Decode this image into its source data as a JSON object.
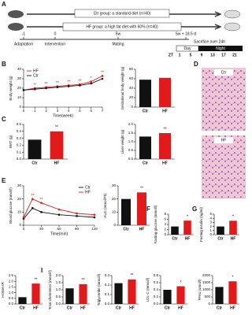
{
  "panel_a": {
    "letter": "A",
    "ctr_group": "Ctr group: a standard diet (n=40)",
    "hf_group": "HF group: a high fat diet with 60% (n=40)",
    "timeline": [
      {
        "time": "-1",
        "label": "Adaptation"
      },
      {
        "time": "0",
        "label": "Intervention"
      },
      {
        "time": "5w",
        "label": "Mating"
      },
      {
        "time": "5w + 18.5 d",
        "label": "Sacrifice over 24h"
      }
    ],
    "day": "Day",
    "night": "Night",
    "zt": "ZT",
    "zt_hours": [
      "1",
      "5",
      "9",
      "13",
      "17",
      "21"
    ]
  },
  "panel_d": {
    "letter": "D",
    "ctr": "Ctr",
    "hf": "HF"
  },
  "chart_data": [
    {
      "type": "line",
      "panel": "B",
      "ylabel": "Body weight (g)",
      "xlabel": "Time(week)",
      "x": [
        0,
        1,
        2,
        3,
        4,
        5,
        6,
        7
      ],
      "xlim": [
        0,
        7
      ],
      "xticks": [
        0,
        1,
        2,
        3,
        4,
        5,
        6,
        7
      ],
      "ylim": [
        0,
        40
      ],
      "yticks": [
        0,
        10,
        20,
        30,
        40
      ],
      "legend": "top-left",
      "series": [
        {
          "name": "HF",
          "color": "#e31a1c",
          "values": [
            18,
            20,
            21,
            22,
            23,
            24,
            27,
            33
          ]
        },
        {
          "name": "Ctr",
          "color": "#111111",
          "values": [
            18,
            19,
            20,
            21,
            22,
            23,
            25,
            30
          ]
        }
      ],
      "annotations": [
        null,
        "**",
        "**",
        "**",
        "**",
        "**",
        "*",
        "**"
      ]
    },
    {
      "type": "bar",
      "ylabel": "Gestational body weight (g)",
      "categories": [
        "Ctr",
        "HF"
      ],
      "values": [
        58,
        62
      ],
      "colors": [
        "#111111",
        "#e31a1c"
      ],
      "ylim": [
        0,
        80
      ],
      "yticks": [
        0,
        20,
        40,
        60,
        80
      ]
    },
    {
      "type": "bar",
      "panel": "C",
      "ylabel": "WAT (g)",
      "categories": [
        "Ctr",
        "HF"
      ],
      "values": [
        0.28,
        0.4
      ],
      "colors": [
        "#111111",
        "#e31a1c"
      ],
      "ylim": [
        0,
        0.5
      ],
      "yticks": [
        {
          "value": 0,
          "label": "0.0"
        },
        0.1,
        0.2,
        0.3,
        0.4,
        0.5
      ],
      "significance": "**"
    },
    {
      "type": "bar",
      "ylabel": "Liver weight (g)",
      "categories": [
        "Ctr",
        "HF"
      ],
      "values": [
        1.3,
        1.5
      ],
      "colors": [
        "#111111",
        "#e31a1c"
      ],
      "ylim": [
        0,
        2
      ],
      "yticks": [
        {
          "value": 0,
          "label": "0.0"
        },
        0.5,
        {
          "value": 1,
          "label": "1.0"
        },
        1.5,
        {
          "value": 2,
          "label": "2.0"
        }
      ],
      "significance": "**"
    },
    {
      "type": "line",
      "panel": "E",
      "ylabel": "Blood glucose (mmol/l)",
      "xlabel": "Time(min)",
      "x": [
        0,
        15,
        30,
        60,
        90,
        120
      ],
      "xlim": [
        0,
        120
      ],
      "xticks": [
        0,
        30,
        60,
        90,
        120
      ],
      "ylim": [
        0,
        30
      ],
      "yticks": [
        0,
        10,
        20,
        30
      ],
      "legend": "top-right",
      "series": [
        {
          "name": "Ctr",
          "color": "#111111",
          "values": [
            5,
            13,
            10,
            8,
            7,
            6
          ]
        },
        {
          "name": "HF",
          "color": "#e31a1c",
          "values": [
            6,
            20,
            17,
            12,
            9,
            8
          ]
        }
      ],
      "annotations": [
        null,
        "**",
        "**",
        null,
        null,
        null
      ]
    },
    {
      "type": "bar",
      "ylabel": "AUC (mmol/l*h)",
      "categories": [
        "Ctr",
        "HF"
      ],
      "values": [
        20,
        25
      ],
      "colors": [
        "#111111",
        "#e31a1c"
      ],
      "ylim": [
        0,
        30
      ],
      "yticks": [
        0,
        10,
        20,
        30
      ],
      "significance": "**"
    },
    {
      "type": "bar",
      "panel": "F",
      "ylabel": "Fasting glucose (mmol/l)",
      "categories": [
        "Ctr",
        "HF"
      ],
      "values": [
        3.2,
        5.5
      ],
      "colors": [
        "#111111",
        "#e31a1c"
      ],
      "ylim": [
        0,
        8
      ],
      "yticks": [
        0,
        2,
        4,
        6,
        8
      ],
      "significance": "*"
    },
    {
      "type": "bar",
      "panel": "G",
      "ylabel": "Fasting insulin (ng/ml)",
      "categories": [
        "Ctr",
        "HF"
      ],
      "values": [
        2,
        3.4
      ],
      "colors": [
        "#111111",
        "#e31a1c"
      ],
      "ylim": [
        0,
        5
      ],
      "yticks": [
        0,
        1,
        2,
        3,
        4,
        5
      ],
      "significance": "*"
    },
    {
      "type": "bar",
      "panel": "H",
      "ylabel": "HOMA-IR",
      "categories": [
        "Ctr",
        "HF"
      ],
      "values": [
        0.6,
        1.8
      ],
      "colors": [
        "#111111",
        "#e31a1c"
      ],
      "ylim": [
        0,
        2.5
      ],
      "yticks": [
        {
          "value": 0,
          "label": "0.0"
        },
        0.5,
        {
          "value": 1,
          "label": "1.0"
        },
        1.5,
        {
          "value": 2,
          "label": "2.0"
        },
        2.5
      ],
      "significance": "**"
    },
    {
      "type": "bar",
      "panel": "I",
      "ylabel": "Total cholesterol (mmol/l)",
      "categories": [
        "Ctr",
        "HF"
      ],
      "values": [
        1.1,
        1.4
      ],
      "colors": [
        "#111111",
        "#e31a1c"
      ],
      "ylim": [
        0,
        2
      ],
      "yticks": [
        {
          "value": 0,
          "label": "0.0"
        },
        0.5,
        {
          "value": 1,
          "label": "1.0"
        },
        1.5,
        {
          "value": 2,
          "label": "2.0"
        }
      ],
      "significance": "**"
    },
    {
      "type": "bar",
      "ylabel": "Triglyceride (mmol/l)",
      "categories": [
        "Ctr",
        "HF"
      ],
      "values": [
        0.22,
        0.26
      ],
      "colors": [
        "#111111",
        "#e31a1c"
      ],
      "ylim": [
        0,
        0.3
      ],
      "yticks": [
        {
          "value": 0,
          "label": "0.0"
        },
        0.1,
        0.2,
        0.3
      ],
      "significance": "**"
    },
    {
      "type": "bar",
      "ylabel": "LDL-C (mmol/l)",
      "categories": [
        "Ctr",
        "HF"
      ],
      "values": [
        0.4,
        0.5
      ],
      "colors": [
        "#111111",
        "#e31a1c"
      ],
      "ylim": [
        0,
        0.8
      ],
      "yticks": [
        {
          "value": 0,
          "label": "0.0"
        },
        0.2,
        0.4,
        0.6,
        0.8
      ],
      "significance": "*"
    },
    {
      "type": "bar",
      "ylabel": "FFAs (umol/l)",
      "categories": [
        "Ctr",
        "HF"
      ],
      "values": [
        1200,
        1600
      ],
      "colors": [
        "#111111",
        "#e31a1c"
      ],
      "ylim": [
        0,
        2000
      ],
      "yticks": [
        0,
        500,
        1000,
        1500,
        2000
      ],
      "significance": "*"
    }
  ]
}
